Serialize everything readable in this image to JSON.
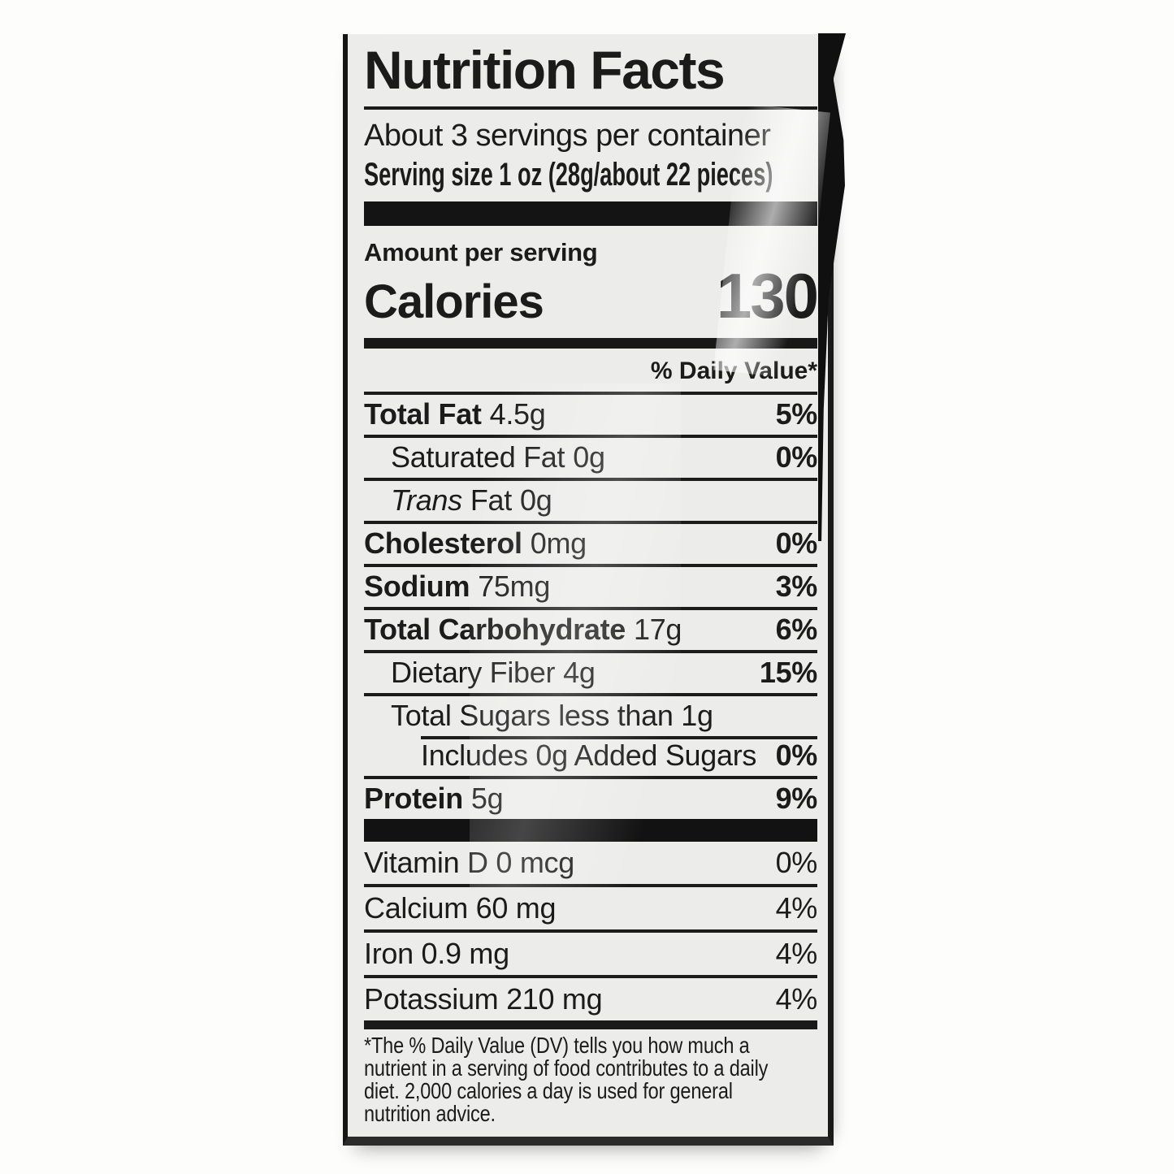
{
  "label": {
    "title": "Nutrition Facts",
    "servings_per_container": "About 3 servings per container",
    "serving_size": "Serving size 1 oz (28g/about 22 pieces)",
    "amount_per_serving": "Amount per serving",
    "calories_label": "Calories",
    "calories_value": "130",
    "daily_value_header": "% Daily Value*",
    "nutrients": [
      {
        "name": "Total Fat",
        "amount": "4.5g",
        "dv": "5%"
      },
      {
        "name": "Saturated Fat",
        "amount": "0g",
        "dv": "0%"
      },
      {
        "name_italic": "Trans",
        "name": "Fat",
        "amount": "0g",
        "dv": ""
      },
      {
        "name": "Cholesterol",
        "amount": "0mg",
        "dv": "0%"
      },
      {
        "name": "Sodium",
        "amount": "75mg",
        "dv": "3%"
      },
      {
        "name": "Total Carbohydrate",
        "amount": "17g",
        "dv": "6%"
      },
      {
        "name": "Dietary Fiber",
        "amount": "4g",
        "dv": "15%"
      },
      {
        "name": "Total Sugars less than 1g",
        "amount": "",
        "dv": ""
      },
      {
        "name": "Includes 0g Added Sugars",
        "amount": "",
        "dv": "0%"
      },
      {
        "name": "Protein",
        "amount": "5g",
        "dv": "9%"
      }
    ],
    "micronutrients": [
      {
        "name": "Vitamin D 0 mcg",
        "dv": "0%"
      },
      {
        "name": "Calcium 60 mg",
        "dv": "4%"
      },
      {
        "name": "Iron 0.9 mg",
        "dv": "4%"
      },
      {
        "name": "Potassium 210 mg",
        "dv": "4%"
      }
    ],
    "footnote_lines": [
      "*The % Daily Value (DV) tells you how much a",
      "nutrient in a serving of food contributes to a daily",
      "diet. 2,000 calories a day is used for general",
      "nutrition advice."
    ]
  },
  "colors": {
    "ink": "#1b1b1b",
    "label_background": "#ecedeb",
    "page_background": "#fdfdfc"
  }
}
